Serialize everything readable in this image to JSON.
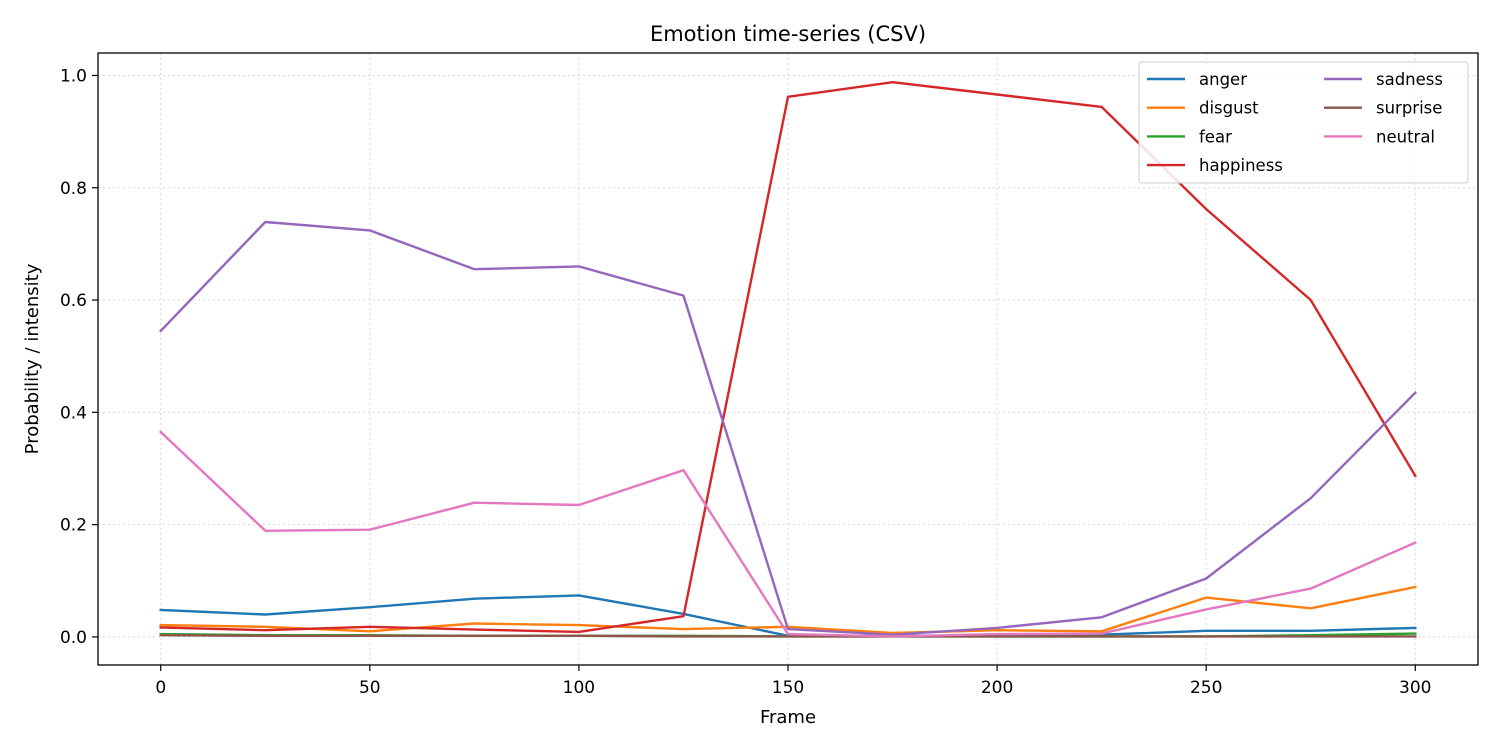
{
  "chart_data": {
    "type": "line",
    "title": "Emotion time-series (CSV)",
    "xlabel": "Frame",
    "ylabel": "Probability / intensity",
    "xlim": [
      -15,
      315
    ],
    "ylim": [
      -0.05,
      1.04
    ],
    "xticks": [
      0,
      50,
      100,
      150,
      200,
      250,
      300
    ],
    "yticks": [
      0.0,
      0.2,
      0.4,
      0.6,
      0.8,
      1.0
    ],
    "xtick_labels": [
      "0",
      "50",
      "100",
      "150",
      "200",
      "250",
      "300"
    ],
    "ytick_labels": [
      "0.0",
      "0.2",
      "0.4",
      "0.6",
      "0.8",
      "1.0"
    ],
    "grid": true,
    "legend_position": "top-right",
    "legend_columns": 2,
    "x": [
      0,
      25,
      50,
      75,
      100,
      125,
      150,
      175,
      200,
      225,
      250,
      275,
      300
    ],
    "series": [
      {
        "name": "anger",
        "color": "#1f77b4",
        "values": [
          0.048,
          0.04,
          0.053,
          0.068,
          0.074,
          0.041,
          0.002,
          0.002,
          0.002,
          0.004,
          0.011,
          0.011,
          0.016
        ]
      },
      {
        "name": "disgust",
        "color": "#ff7f0e",
        "values": [
          0.021,
          0.018,
          0.01,
          0.024,
          0.021,
          0.014,
          0.018,
          0.007,
          0.012,
          0.01,
          0.07,
          0.051,
          0.089
        ]
      },
      {
        "name": "fear",
        "color": "#2ca02c",
        "values": [
          0.005,
          0.003,
          0.003,
          0.002,
          0.002,
          0.002,
          0.001,
          0.001,
          0.001,
          0.001,
          0.001,
          0.003,
          0.006
        ]
      },
      {
        "name": "happiness",
        "color": "#d62728",
        "values": [
          0.017,
          0.012,
          0.018,
          0.013,
          0.009,
          0.037,
          0.962,
          0.988,
          0.966,
          0.944,
          0.762,
          0.6,
          0.287
        ]
      },
      {
        "name": "sadness",
        "color": "#9467bd",
        "values": [
          0.545,
          0.739,
          0.724,
          0.655,
          0.66,
          0.608,
          0.014,
          0.004,
          0.016,
          0.035,
          0.104,
          0.247,
          0.435
        ]
      },
      {
        "name": "surprise",
        "color": "#8c564b",
        "values": [
          0.003,
          0.002,
          0.002,
          0.002,
          0.002,
          0.001,
          0.001,
          0.001,
          0.001,
          0.001,
          0.001,
          0.001,
          0.001
        ]
      },
      {
        "name": "neutral",
        "color": "#e377c2",
        "values": [
          0.365,
          0.189,
          0.191,
          0.239,
          0.235,
          0.297,
          0.005,
          0.001,
          0.005,
          0.006,
          0.049,
          0.086,
          0.168
        ]
      }
    ]
  }
}
